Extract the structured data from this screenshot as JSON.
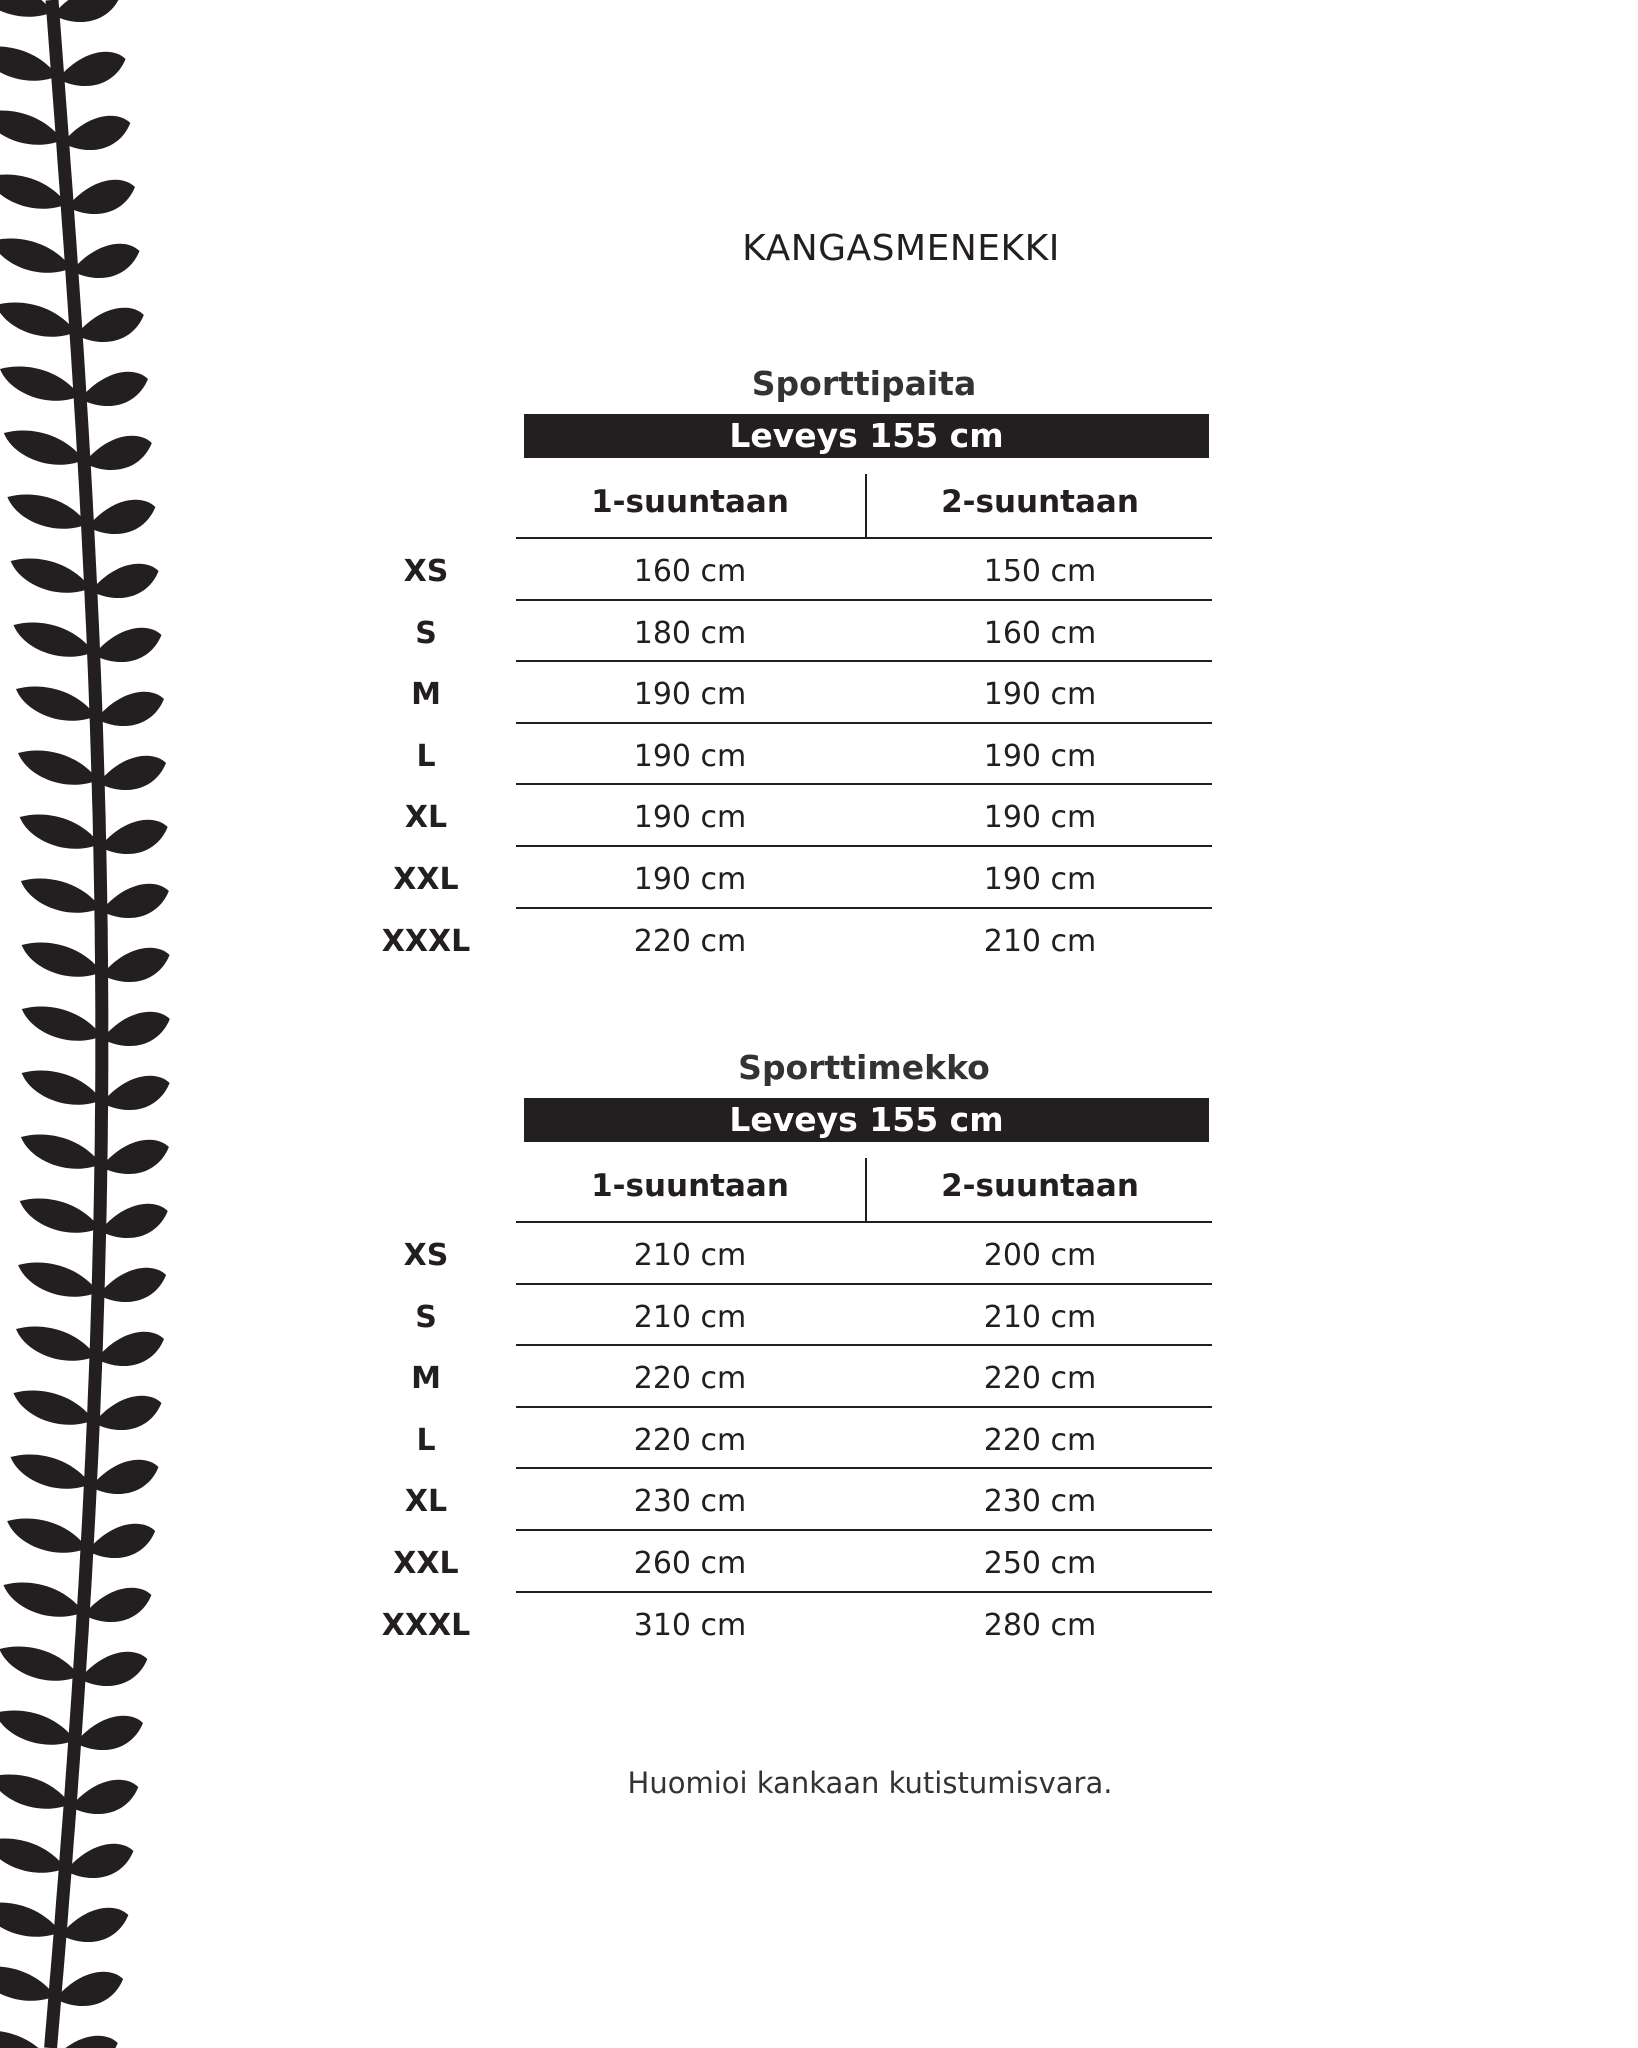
{
  "title": "KANGASMENEKKI",
  "tables": [
    {
      "name": "Sporttipaita",
      "width_label": "Leveys 155 cm",
      "columns": [
        "1-suuntaan",
        "2-suuntaan"
      ],
      "rows": [
        {
          "size": "XS",
          "c1": "160 cm",
          "c2": "150 cm"
        },
        {
          "size": "S",
          "c1": "180 cm",
          "c2": "160 cm"
        },
        {
          "size": "M",
          "c1": "190 cm",
          "c2": "190 cm"
        },
        {
          "size": "L",
          "c1": "190 cm",
          "c2": "190 cm"
        },
        {
          "size": "XL",
          "c1": "190 cm",
          "c2": "190 cm"
        },
        {
          "size": "XXL",
          "c1": "190 cm",
          "c2": "190 cm"
        },
        {
          "size": "XXXL",
          "c1": "220 cm",
          "c2": "210 cm"
        }
      ]
    },
    {
      "name": "Sporttimekko",
      "width_label": "Leveys 155 cm",
      "columns": [
        "1-suuntaan",
        "2-suuntaan"
      ],
      "rows": [
        {
          "size": "XS",
          "c1": "210 cm",
          "c2": "200 cm"
        },
        {
          "size": "S",
          "c1": "210 cm",
          "c2": "210 cm"
        },
        {
          "size": "M",
          "c1": "220 cm",
          "c2": "220 cm"
        },
        {
          "size": "L",
          "c1": "220 cm",
          "c2": "220 cm"
        },
        {
          "size": "XL",
          "c1": "230 cm",
          "c2": "230 cm"
        },
        {
          "size": "XXL",
          "c1": "260 cm",
          "c2": "250 cm"
        },
        {
          "size": "XXXL",
          "c1": "310 cm",
          "c2": "280 cm"
        }
      ]
    }
  ],
  "note": "Huomioi kankaan kutistumisvara.",
  "decoration": {
    "icon": "leaf-vine-border",
    "color": "#231f20"
  }
}
